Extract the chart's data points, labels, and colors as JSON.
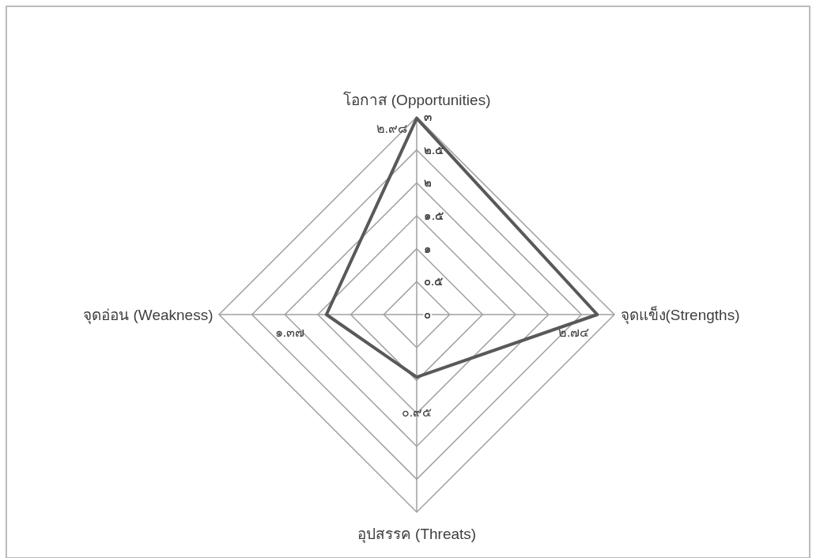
{
  "chart_data": {
    "type": "radar",
    "categories": [
      "โอกาส (Opportunities)",
      "จุดแข็ง(Strengths)",
      "อุปสรรค (Threats)",
      "จุดอ่อน (Weakness)"
    ],
    "series": [
      {
        "color": "#595959",
        "values": [
          2.98,
          2.74,
          0.95,
          1.37
        ],
        "value_labels": [
          "๒.๙๘",
          "๒.๗๔",
          "๐.๙๕",
          "๑.๓๗"
        ]
      }
    ],
    "ylim": [
      0,
      3
    ],
    "yticks": [
      {
        "value": 0,
        "label": "๐"
      },
      {
        "value": 0.5,
        "label": "๐.๕"
      },
      {
        "value": 1,
        "label": "๑"
      },
      {
        "value": 1.5,
        "label": "๑.๕"
      },
      {
        "value": 2,
        "label": "๒"
      },
      {
        "value": 2.5,
        "label": "๒.๕"
      },
      {
        "value": 3,
        "label": "๓"
      }
    ],
    "grid": true,
    "marker": "none",
    "line_style": "solid"
  }
}
